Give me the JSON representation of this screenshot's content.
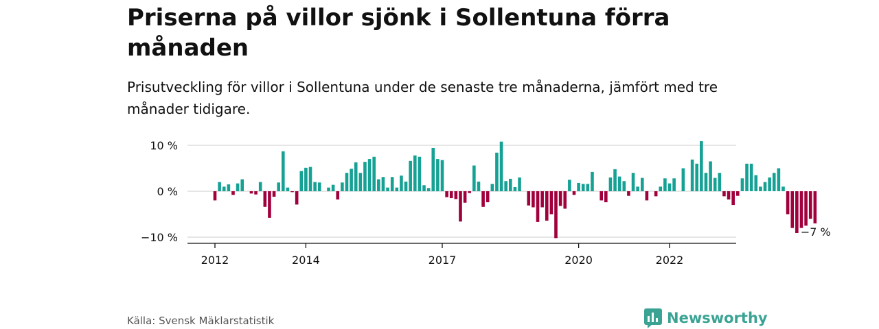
{
  "title": "Priserna på villor sjönk i Sollentuna förra månaden",
  "subtitle": "Prisutveckling för villor i Sollentuna under de senaste tre månaderna, jämfört med tre månader tidigare.",
  "source": "Källa: Svensk Mäklarstatistik",
  "brand": {
    "name": "Newsworthy",
    "icon": "newsworthy-logo-icon"
  },
  "colors": {
    "positive": "#16a195",
    "negative": "#a0003c",
    "grid": "#d6d6d6",
    "axis": "#111111"
  },
  "chart_data": {
    "type": "bar",
    "title": "Priserna på villor sjönk i Sollentuna förra månaden",
    "subtitle": "Prisutveckling för villor i Sollentuna under de senaste tre månaderna, jämfört med tre månader tidigare.",
    "xlabel": "",
    "ylabel": "",
    "ylim": [
      -11,
      11
    ],
    "yticks": [
      {
        "value": 10,
        "label": "10 %"
      },
      {
        "value": 0,
        "label": "0 %"
      },
      {
        "value": -10,
        "label": "−10 %"
      }
    ],
    "xticks": [
      {
        "index": 0,
        "label": "2012"
      },
      {
        "index": 20,
        "label": "2014"
      },
      {
        "index": 50,
        "label": "2017"
      },
      {
        "index": 80,
        "label": "2020"
      },
      {
        "index": 100,
        "label": "2022"
      }
    ],
    "grid": true,
    "last_label": "−7 %",
    "values": [
      -2,
      2,
      1,
      1.5,
      -0.8,
      1.7,
      2.6,
      0,
      -0.5,
      -0.7,
      2,
      -3.4,
      -5.8,
      -1.2,
      1.9,
      8.7,
      0.8,
      -0.2,
      -2.9,
      4.4,
      5.1,
      5.3,
      2,
      1.9,
      0,
      0.8,
      1.4,
      -1.8,
      1.9,
      4,
      4.9,
      6.3,
      4,
      6.4,
      7,
      7.5,
      2.6,
      3.1,
      0.8,
      3.1,
      0.8,
      3.4,
      2.1,
      6.6,
      7.8,
      7.5,
      1.3,
      0.7,
      9.4,
      7,
      6.8,
      -1.3,
      -1.5,
      -1.7,
      -6.6,
      -2.5,
      -0.4,
      5.6,
      2.1,
      -3.4,
      -2.4,
      1.6,
      8.4,
      10.8,
      2.2,
      2.7,
      0.9,
      3,
      0,
      -3.1,
      -3.5,
      -6.7,
      -3.5,
      -6.4,
      -5,
      -10.2,
      -3.2,
      -3.8,
      2.5,
      -0.8,
      1.8,
      1.6,
      1.6,
      4.2,
      0,
      -2,
      -2.4,
      3,
      4.8,
      3.2,
      2.2,
      -1,
      4,
      1,
      2.9,
      -2,
      0,
      -1.1,
      1,
      2.8,
      1.7,
      2.8,
      0,
      5,
      0,
      6.9,
      6,
      10.9,
      4,
      6.5,
      2.9,
      4,
      -1.1,
      -1.8,
      -3,
      -1,
      2.8,
      6,
      6,
      3.5,
      1,
      2,
      3,
      4,
      5,
      1,
      -5,
      -8,
      -9.1,
      -8,
      -7.5,
      -6,
      -7
    ]
  }
}
